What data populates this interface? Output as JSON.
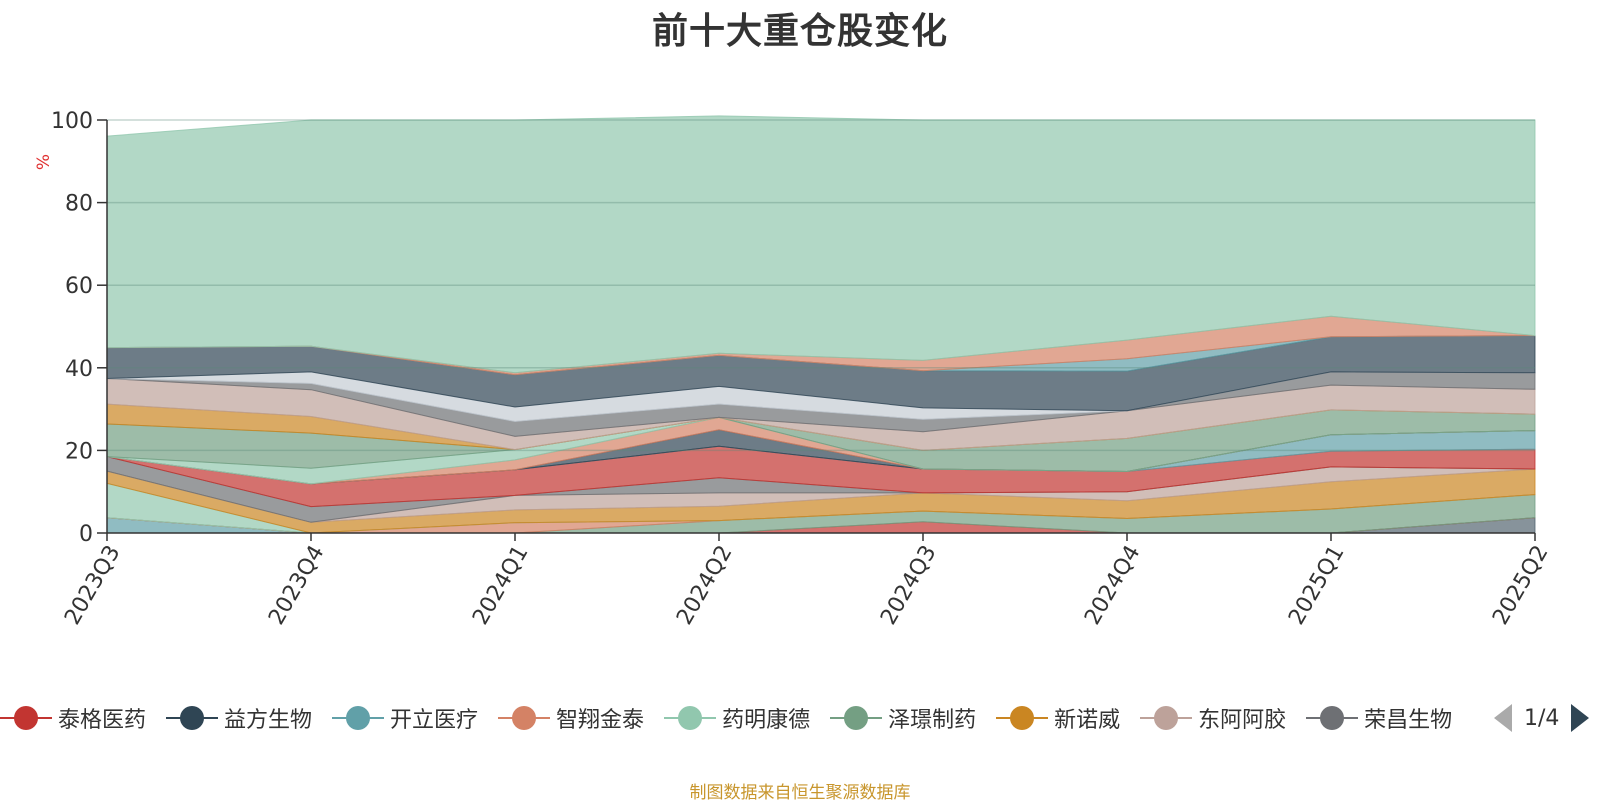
{
  "title": "前十大重仓股变化",
  "source_note": "制图数据来自恒生聚源数据库",
  "legend": {
    "items": [
      {
        "name": "泰格医药",
        "color": "#c23531"
      },
      {
        "name": "益方生物",
        "color": "#2f4554"
      },
      {
        "name": "开立医疗",
        "color": "#61a0a8"
      },
      {
        "name": "智翔金泰",
        "color": "#d48265"
      },
      {
        "name": "药明康德",
        "color": "#91c7ae"
      },
      {
        "name": "泽璟制药",
        "color": "#749f83"
      },
      {
        "name": "新诺威",
        "color": "#ca8622"
      },
      {
        "name": "东阿阿胶",
        "color": "#bda29a"
      },
      {
        "name": "荣昌生物",
        "color": "#6e7074"
      }
    ],
    "page": "1/4"
  },
  "chart_data": {
    "type": "area",
    "stacked": true,
    "title": "前十大重仓股变化",
    "ylabel": "%",
    "ylim": [
      0,
      100
    ],
    "yticks": [
      0,
      20,
      40,
      60,
      80,
      100
    ],
    "grid": true,
    "legend_position": "bottom",
    "categories": [
      "2023Q3",
      "2023Q4",
      "2024Q1",
      "2024Q2",
      "2024Q3",
      "2024Q4",
      "2025Q1",
      "2025Q2"
    ],
    "series": [
      {
        "name": "",
        "color": "#546570",
        "values": [
          0,
          0,
          0,
          0,
          0,
          0,
          0,
          3.7
        ]
      },
      {
        "name": "",
        "color": "#61a0a8",
        "values": [
          3.7,
          0,
          0,
          0,
          0,
          0,
          0,
          0
        ]
      },
      {
        "name": "",
        "color": "#c23531",
        "values": [
          0,
          0,
          0,
          0,
          2.7,
          0,
          0,
          0
        ]
      },
      {
        "name": "",
        "color": "#749f83",
        "values": [
          0,
          0,
          0,
          3.0,
          2.6,
          3.5,
          5.8,
          5.6
        ]
      },
      {
        "name": "",
        "color": "#d48265",
        "values": [
          0,
          0,
          2.5,
          0,
          0,
          0,
          0,
          0
        ]
      },
      {
        "name": "",
        "color": "#91c7ae",
        "values": [
          8.3,
          0,
          0,
          0,
          0,
          0,
          0,
          0
        ]
      },
      {
        "name": "",
        "color": "#ca8622",
        "values": [
          3.0,
          2.6,
          3.1,
          3.5,
          4.4,
          4.3,
          6.6,
          6.2
        ]
      },
      {
        "name": "",
        "color": "#bda29a",
        "values": [
          0,
          0,
          3.5,
          3.2,
          0,
          2.2,
          3.6,
          0
        ]
      },
      {
        "name": "",
        "color": "#6e7074",
        "values": [
          3.5,
          3.8,
          0,
          3.7,
          0,
          0,
          0,
          0
        ]
      },
      {
        "name": "",
        "color": "#c23531",
        "values": [
          0,
          5.5,
          6.2,
          7.6,
          5.8,
          4.9,
          3.8,
          4.8
        ]
      },
      {
        "name": "",
        "color": "#61a0a8",
        "values": [
          0,
          0,
          0,
          0,
          0,
          0,
          4.0,
          4.5
        ]
      },
      {
        "name": "",
        "color": "#2f4554",
        "values": [
          0,
          0,
          0,
          4.0,
          0,
          0,
          0,
          0
        ]
      },
      {
        "name": "",
        "color": "#d48265",
        "values": [
          0,
          0,
          2.4,
          3.0,
          0,
          0,
          0,
          0
        ]
      },
      {
        "name": "",
        "color": "#91c7ae",
        "values": [
          0,
          3.8,
          2.5,
          0,
          0,
          0,
          0,
          0
        ]
      },
      {
        "name": "",
        "color": "#749f83",
        "values": [
          7.9,
          8.5,
          0,
          0,
          4.5,
          8.0,
          6.0,
          4.0
        ]
      },
      {
        "name": "",
        "color": "#ca8622",
        "values": [
          4.8,
          4.0,
          0,
          0,
          0,
          0,
          0,
          0
        ]
      },
      {
        "name": "",
        "color": "#bda29a",
        "values": [
          6.2,
          6.5,
          3.2,
          0,
          4.5,
          6.7,
          6.0,
          6.0
        ]
      },
      {
        "name": "",
        "color": "#6e7074",
        "values": [
          0,
          1.5,
          3.6,
          3.2,
          3.0,
          0,
          3.2,
          4.0
        ]
      },
      {
        "name": "",
        "color": "#c4ccd3",
        "values": [
          0,
          2.8,
          3.5,
          4.3,
          2.8,
          0,
          0,
          0
        ]
      },
      {
        "name": "",
        "color": "#2f4554",
        "values": [
          7.5,
          6.2,
          7.8,
          7.5,
          9.0,
          9.6,
          8.5,
          9.0
        ]
      },
      {
        "name": "",
        "color": "#61a0a8",
        "values": [
          0,
          0,
          0,
          0,
          0,
          3.0,
          0,
          0
        ]
      },
      {
        "name": "",
        "color": "#d48265",
        "values": [
          0,
          0,
          0.5,
          0.5,
          2.5,
          4.5,
          5.0,
          0
        ]
      },
      {
        "name": "",
        "color": "#91c7ae",
        "values": [
          51.2,
          54.8,
          61.2,
          57.5,
          58.2,
          53.3,
          47.5,
          52.2
        ]
      }
    ]
  }
}
